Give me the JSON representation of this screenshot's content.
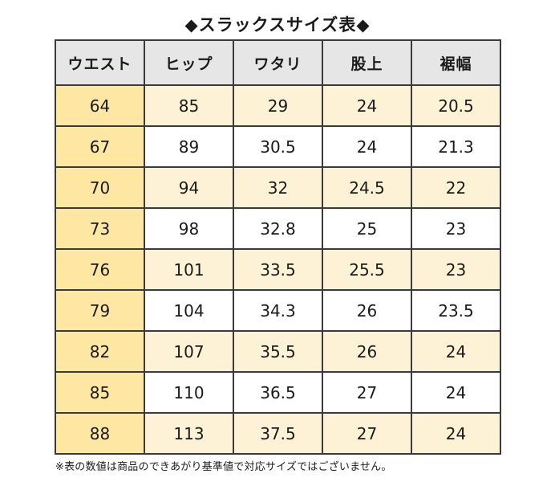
{
  "title": "◆スラックスサイズ表◆",
  "table": {
    "headers": [
      "ウエスト",
      "ヒップ",
      "ワタリ",
      "股上",
      "裾幅"
    ],
    "rows": [
      [
        "64",
        "85",
        "29",
        "24",
        "20.5"
      ],
      [
        "67",
        "89",
        "30.5",
        "24",
        "21.3"
      ],
      [
        "70",
        "94",
        "32",
        "24.5",
        "22"
      ],
      [
        "73",
        "98",
        "32.8",
        "25",
        "23"
      ],
      [
        "76",
        "101",
        "33.5",
        "25.5",
        "23"
      ],
      [
        "79",
        "104",
        "34.3",
        "26",
        "23.5"
      ],
      [
        "82",
        "107",
        "35.5",
        "26",
        "24"
      ],
      [
        "85",
        "110",
        "36.5",
        "27",
        "24"
      ],
      [
        "88",
        "113",
        "37.5",
        "27",
        "24"
      ]
    ]
  },
  "note": "※表の数値は商品のできあがり基準値で対応サイズではございません。",
  "colors": {
    "header_bg": "#e6e6e6",
    "waist_col_bg": "#fde7a3",
    "odd_row_bg": "#fdf2d6",
    "even_row_bg": "#ffffff",
    "border": "#3a3a3a"
  }
}
